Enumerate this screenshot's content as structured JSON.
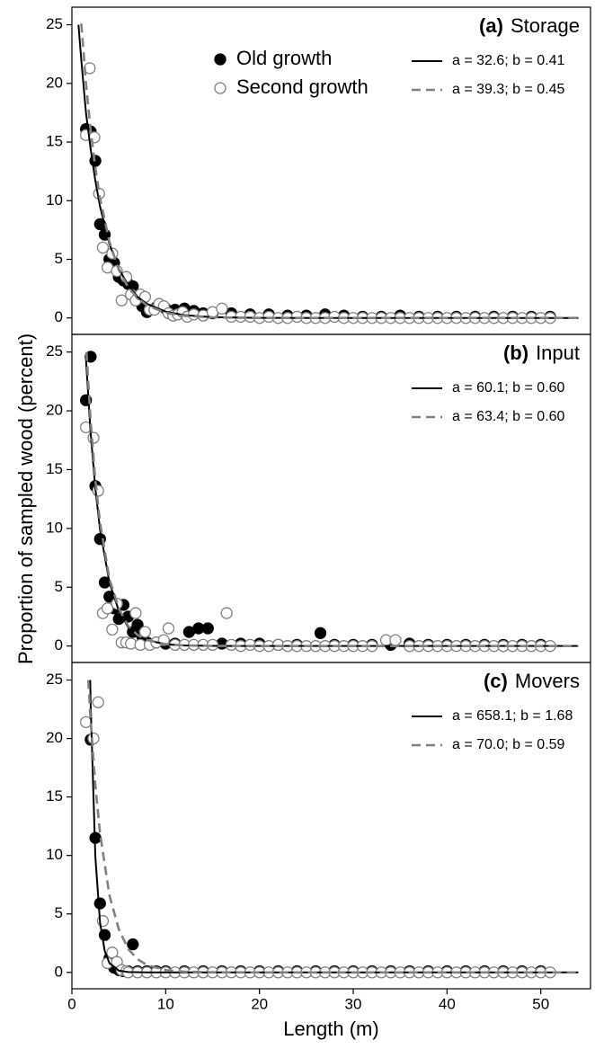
{
  "chart_data": [
    {
      "type": "scatter",
      "panel": "(a)",
      "title": "Storage",
      "xlim": [
        0,
        55.3
      ],
      "ylim": [
        -1.4,
        26.5
      ],
      "yticks": [
        0,
        5,
        10,
        15,
        20,
        25
      ],
      "series": [
        {
          "type": "scatter",
          "name": "Old growth",
          "color": "#000000",
          "facecolor": "#000000",
          "x": [
            1.5,
            2,
            2.5,
            3,
            3.5,
            4,
            4.5,
            5,
            5.5,
            6,
            6.5,
            7,
            7.5,
            8,
            9,
            10,
            11,
            12,
            13,
            14,
            15,
            17,
            19,
            21,
            23,
            25,
            27,
            29,
            31,
            33,
            35,
            37,
            39,
            41,
            43,
            45,
            47,
            49,
            51
          ],
          "values": [
            16.1,
            15.9,
            13.4,
            8,
            7.1,
            5,
            4.7,
            3.5,
            3.2,
            2.9,
            2.7,
            1.9,
            1.0,
            0.5,
            0.9,
            0.8,
            0.7,
            0.8,
            0.6,
            0.4,
            0.4,
            0.4,
            0.3,
            0.3,
            0.2,
            0.2,
            0.3,
            0.2,
            0.1,
            0.1,
            0.2,
            0.1,
            0.1,
            0.1,
            0.1,
            0.1,
            0.1,
            0.1,
            0.1
          ]
        },
        {
          "type": "scatter",
          "name": "Second growth",
          "color": "#808080",
          "facecolor": "#ffffff",
          "x": [
            1.5,
            1.9,
            2.4,
            2.9,
            3.3,
            3.8,
            4.3,
            4.8,
            5.3,
            5.8,
            6.3,
            6.8,
            7.3,
            7.8,
            8.3,
            8.8,
            9.3,
            9.8,
            10.3,
            10.8,
            11.3,
            11.8,
            12.3,
            13,
            14,
            15,
            16,
            17,
            18,
            19,
            20,
            21,
            22,
            23,
            24,
            25,
            26,
            27,
            28,
            29,
            30,
            31,
            32,
            33,
            34,
            35,
            36,
            37,
            38,
            39,
            40,
            41,
            42,
            43,
            44,
            45,
            46,
            47,
            48,
            49,
            50,
            51
          ],
          "values": [
            15.6,
            21.3,
            15.4,
            10.6,
            6,
            4.3,
            5.5,
            4,
            1.5,
            3.5,
            2,
            1.5,
            2,
            1.8,
            0.7,
            0.7,
            1.2,
            1,
            0.4,
            0.2,
            0.3,
            0.5,
            0.1,
            0.3,
            0.2,
            0.5,
            0.8,
            0.1,
            0.1,
            0.1,
            0,
            0.1,
            0,
            0,
            0.1,
            0,
            0,
            0,
            0.1,
            0,
            0,
            0,
            0,
            0,
            0,
            0,
            0,
            0,
            0,
            0,
            0,
            0,
            0,
            0,
            0,
            0,
            0,
            0,
            0,
            0,
            0,
            0
          ]
        },
        {
          "type": "line",
          "name": "a = 32.6; b = 0.41",
          "color": "#000000",
          "dash": false,
          "x": [
            0.7,
            1,
            1.5,
            2,
            2.5,
            3,
            4,
            5,
            6,
            7,
            8,
            10,
            12,
            15,
            20,
            30,
            40,
            54
          ],
          "values": [
            25,
            22,
            17.5,
            14.4,
            11.7,
            9.5,
            6.3,
            4.2,
            2.8,
            1.8,
            1.2,
            0.54,
            0.24,
            0.07,
            0.01,
            0,
            0,
            0
          ]
        },
        {
          "type": "line",
          "name": "a = 39.3; b = 0.45",
          "color": "#808080",
          "dash": true,
          "x": [
            1,
            1.5,
            2,
            2.5,
            3,
            4,
            5,
            6,
            7,
            8,
            10,
            12,
            15,
            20,
            30,
            40,
            54
          ],
          "values": [
            25.1,
            20,
            16,
            12.8,
            10.2,
            6.5,
            4.1,
            2.6,
            1.7,
            1.07,
            0.44,
            0.18,
            0.05,
            0,
            0,
            0,
            0
          ]
        }
      ]
    },
    {
      "type": "scatter",
      "panel": "(b)",
      "title": "Input",
      "ylabel": "Proportion of sampled wood (percent)",
      "xlim": [
        0,
        55.3
      ],
      "ylim": [
        -1.4,
        26.5
      ],
      "yticks": [
        0,
        5,
        10,
        15,
        20,
        25
      ],
      "series": [
        {
          "type": "scatter",
          "color": "#000000",
          "facecolor": "#000000",
          "x": [
            1.5,
            2,
            2.5,
            3,
            3.5,
            4,
            4.5,
            5,
            5.5,
            6,
            6.5,
            7,
            7.5,
            8,
            9,
            10,
            11,
            12.5,
            13.5,
            14.5,
            16,
            18,
            20,
            22,
            24,
            26.5,
            28,
            30,
            32,
            34,
            36,
            38,
            40,
            42,
            44,
            46,
            48,
            50
          ],
          "values": [
            20.9,
            24.6,
            13.6,
            9.1,
            5.4,
            4.2,
            3.2,
            2.3,
            3.5,
            2.5,
            1.2,
            1.8,
            0.8,
            0.3,
            0.3,
            0.2,
            0.2,
            1.2,
            1.5,
            1.5,
            0.2,
            0.2,
            0.2,
            0.1,
            0.1,
            1.1,
            0.1,
            0.1,
            0.1,
            0.1,
            0.2,
            0.1,
            0.1,
            0.1,
            0.1,
            0.1,
            0.1,
            0.1
          ]
        },
        {
          "type": "scatter",
          "color": "#808080",
          "facecolor": "#ffffff",
          "x": [
            1.5,
            2.3,
            2.8,
            3.3,
            3.8,
            4.3,
            4.8,
            5.3,
            5.8,
            6.3,
            6.8,
            7.3,
            7.8,
            8.3,
            9,
            9.8,
            10.3,
            11,
            12,
            13,
            14,
            15,
            16.5,
            17,
            18,
            19,
            20,
            21,
            22,
            23,
            24,
            25,
            26,
            27,
            28,
            29,
            30,
            31,
            32,
            33.5,
            34.5,
            36,
            37,
            38,
            39,
            40,
            41,
            42,
            43,
            44,
            45,
            46,
            47,
            48,
            49,
            50,
            51
          ],
          "values": [
            18.6,
            17.7,
            13.2,
            2.8,
            3.2,
            1.4,
            3.6,
            0.3,
            0.3,
            0.2,
            2.8,
            0.1,
            1.2,
            0.1,
            0.3,
            0.5,
            1.5,
            0.1,
            0.1,
            0.1,
            0.1,
            0.1,
            2.8,
            0.1,
            0,
            0.1,
            0,
            0,
            0.1,
            0,
            0,
            0,
            0,
            0,
            0,
            0,
            0,
            0,
            0,
            0.5,
            0.5,
            0,
            0,
            0,
            0,
            0,
            0,
            0,
            0,
            0,
            0,
            0,
            0,
            0,
            0,
            0,
            0
          ]
        },
        {
          "type": "line",
          "name": "a = 60.1; b = 0.60",
          "color": "#000000",
          "dash": false,
          "x": [
            1.5,
            2,
            2.5,
            3,
            4,
            5,
            6,
            7,
            8,
            10,
            12,
            15,
            20,
            30,
            54
          ],
          "values": [
            24.4,
            18.1,
            13.4,
            9.9,
            5.4,
            3,
            1.6,
            0.9,
            0.5,
            0.15,
            0.04,
            0.01,
            0,
            0,
            0
          ]
        },
        {
          "type": "line",
          "name": "a = 63.4; b = 0.60",
          "color": "#808080",
          "dash": true,
          "x": [
            1.55,
            2,
            2.5,
            3,
            4,
            5,
            6,
            7,
            8,
            10,
            12,
            15,
            20,
            30,
            54
          ],
          "values": [
            25,
            19.1,
            14.1,
            10.5,
            5.7,
            3.2,
            1.7,
            0.95,
            0.52,
            0.16,
            0.05,
            0.01,
            0,
            0,
            0
          ]
        }
      ]
    },
    {
      "type": "scatter",
      "panel": "(c)",
      "title": "Movers",
      "xlabel": "Length (m)",
      "xlim": [
        0,
        55.3
      ],
      "ylim": [
        -1.4,
        26.5
      ],
      "xticks": [
        0,
        10,
        20,
        30,
        40,
        50
      ],
      "yticks": [
        0,
        5,
        10,
        15,
        20,
        25
      ],
      "series": [
        {
          "type": "scatter",
          "color": "#000000",
          "facecolor": "#000000",
          "x": [
            2,
            2.5,
            3,
            3.5,
            4,
            4.5,
            5,
            5.5,
            6,
            6.5,
            7,
            8,
            9,
            10,
            12,
            14,
            16,
            18,
            20,
            22,
            24,
            26,
            28,
            30,
            32,
            34,
            36,
            38,
            40,
            42,
            44,
            46,
            48,
            50
          ],
          "values": [
            19.9,
            11.5,
            5.9,
            3.2,
            1.2,
            0.4,
            0.2,
            0.1,
            0.1,
            2.4,
            0.1,
            0.1,
            0.1,
            0.1,
            0.1,
            0.1,
            0.1,
            0.1,
            0.1,
            0.1,
            0.1,
            0.1,
            0.1,
            0.1,
            0.1,
            0.1,
            0.1,
            0.1,
            0.1,
            0.1,
            0.1,
            0.1,
            0.1,
            0.1
          ]
        },
        {
          "type": "scatter",
          "color": "#808080",
          "facecolor": "#ffffff",
          "x": [
            1.5,
            2.3,
            2.8,
            3.3,
            3.8,
            4.3,
            4.8,
            5.3,
            5.8,
            6,
            7,
            8,
            9,
            10,
            11,
            12,
            13,
            14,
            15,
            16,
            17,
            18,
            19,
            20,
            21,
            22,
            23,
            24,
            25,
            26,
            27,
            28,
            29,
            30,
            31,
            32,
            33,
            34,
            35,
            36,
            37,
            38,
            39,
            40,
            41,
            42,
            43,
            44,
            45,
            46,
            47,
            48,
            49,
            50,
            51
          ],
          "values": [
            21.4,
            20,
            23.1,
            4.4,
            0.8,
            1.7,
            0.9,
            0.2,
            0.1,
            0,
            0,
            0,
            0,
            0,
            0,
            0,
            0,
            0,
            0,
            0,
            0,
            0,
            0,
            0,
            0,
            0,
            0,
            0,
            0,
            0,
            0,
            0,
            0,
            0,
            0,
            0,
            0,
            0,
            0,
            0,
            0,
            0,
            0,
            0,
            0,
            0,
            0,
            0,
            0,
            0,
            0,
            0,
            0,
            0,
            0
          ]
        },
        {
          "type": "line",
          "name": "a = 658.1; b = 1.68",
          "color": "#000000",
          "dash": false,
          "x": [
            1.95,
            2,
            2.5,
            3,
            3.5,
            4,
            5,
            6,
            8,
            10,
            54
          ],
          "values": [
            25,
            22.9,
            9.9,
            4.26,
            1.84,
            0.79,
            0.15,
            0.03,
            0,
            0,
            0
          ]
        },
        {
          "type": "line",
          "name": "a = 70.0; b = 0.59",
          "color": "#808080",
          "dash": true,
          "x": [
            1.75,
            2,
            2.5,
            3,
            4,
            5,
            6,
            7,
            8,
            10,
            12,
            15,
            20,
            54
          ],
          "values": [
            25,
            21.5,
            16,
            11.9,
            6.6,
            3.7,
            2,
            1.13,
            0.63,
            0.19,
            0.06,
            0.01,
            0,
            0
          ]
        }
      ]
    }
  ]
}
